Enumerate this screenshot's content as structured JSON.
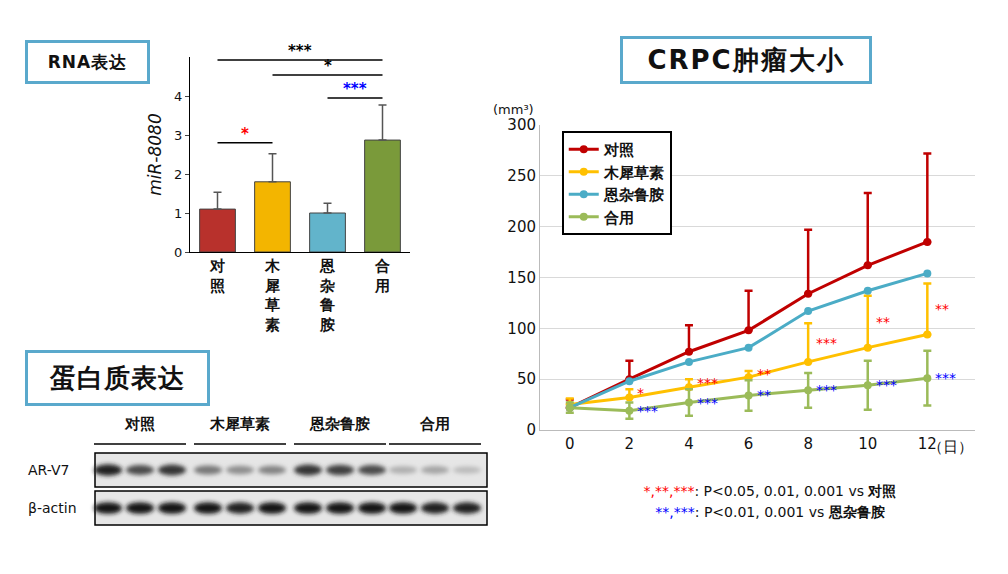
{
  "chart_data": [
    {
      "type": "bar",
      "title": "RNA表达",
      "categories": [
        "对照",
        "木犀草素",
        "恩杂鲁胺",
        "合用"
      ],
      "values": [
        1.1,
        1.8,
        1.0,
        2.87
      ],
      "error_plus": [
        0.43,
        0.72,
        0.25,
        0.9
      ],
      "colors": [
        "#b8312c",
        "#f3b500",
        "#62b4cb",
        "#7a9a3a"
      ],
      "y_label": "miR-8080",
      "ylim": [
        0,
        5
      ],
      "yticks": [
        0,
        1,
        2,
        3,
        4
      ],
      "comparisons": [
        {
          "from": "对照",
          "to": "木犀草素",
          "label": "*",
          "color": "#ff0000",
          "y": 2.8
        },
        {
          "from": "恩杂鲁胺",
          "to": "合用",
          "label": "***",
          "color": "#0000ff",
          "y": 3.95
        },
        {
          "from": "木犀草素",
          "to": "合用",
          "label": "*",
          "color": "#000000",
          "y": 4.54
        },
        {
          "from": "对照",
          "to": "合用",
          "label": "***",
          "color": "#000000",
          "y": 4.92
        }
      ]
    },
    {
      "type": "line",
      "title": "CRPC肿瘤大小",
      "x": [
        0,
        2,
        4,
        6,
        8,
        10,
        12
      ],
      "y_label": "(mm³)",
      "x_label": "（日）",
      "xlim": [
        -1,
        13.6
      ],
      "xticks": [
        0,
        2,
        4,
        6,
        8,
        10,
        12
      ],
      "ylim": [
        0,
        300
      ],
      "yticks": [
        0,
        50,
        100,
        150,
        200,
        250,
        300
      ],
      "grid": true,
      "legend": "upper left",
      "marker": "circle",
      "series": [
        {
          "name": "对照",
          "color": "#c00000",
          "values": [
            22,
            50,
            77,
            98,
            134,
            162,
            185
          ],
          "error_plus": [
            8,
            18,
            26,
            39,
            63,
            71,
            87
          ]
        },
        {
          "name": "木犀草素",
          "color": "#ffc000",
          "values": [
            25,
            32,
            42,
            52,
            67,
            81,
            94
          ],
          "error_plus": [
            6,
            8,
            8,
            6,
            38,
            51,
            50
          ],
          "significance": [
            null,
            "*",
            "***",
            "**",
            "***",
            "**",
            "**"
          ],
          "significance_color": "#ff0000"
        },
        {
          "name": "恩杂鲁胺",
          "color": "#4bacc6",
          "values": [
            22,
            48,
            67,
            81,
            117,
            137,
            154
          ]
        },
        {
          "name": "合用",
          "color": "#9bbb59",
          "values": [
            22,
            19,
            27,
            34,
            39,
            44,
            51
          ],
          "error_plus": [
            5,
            8,
            13,
            15,
            17,
            24,
            27
          ],
          "error_minus": [
            5,
            8,
            13,
            15,
            17,
            24,
            27
          ],
          "significance": [
            null,
            "***",
            "***",
            "**",
            "***",
            "***",
            "***"
          ],
          "significance_color": "#0000ff"
        }
      ],
      "notes": [
        {
          "stars": "*,**,***",
          "color": "#ff0000",
          "text": ": P<0.05, 0.01, 0.001 vs ",
          "group": "对照"
        },
        {
          "stars": "**,***",
          "color": "#0000ff",
          "text": ": P<0.01, 0.001 vs ",
          "group": "恩杂鲁胺"
        }
      ]
    }
  ],
  "blot": {
    "title": "蛋白质表达",
    "groups": [
      "对照",
      "木犀草素",
      "恩杂鲁胺",
      "合用"
    ],
    "rows": [
      {
        "label": "AR-V7",
        "intensity": [
          [
            0.9,
            0.7,
            0.8
          ],
          [
            0.5,
            0.4,
            0.45
          ],
          [
            0.8,
            0.75,
            0.7
          ],
          [
            0.25,
            0.3,
            0.2
          ]
        ]
      },
      {
        "label": "β-actin",
        "intensity": [
          [
            0.95,
            0.95,
            0.95
          ],
          [
            0.95,
            0.9,
            0.95
          ],
          [
            0.95,
            0.95,
            0.95
          ],
          [
            0.95,
            0.9,
            0.9
          ]
        ]
      }
    ]
  }
}
